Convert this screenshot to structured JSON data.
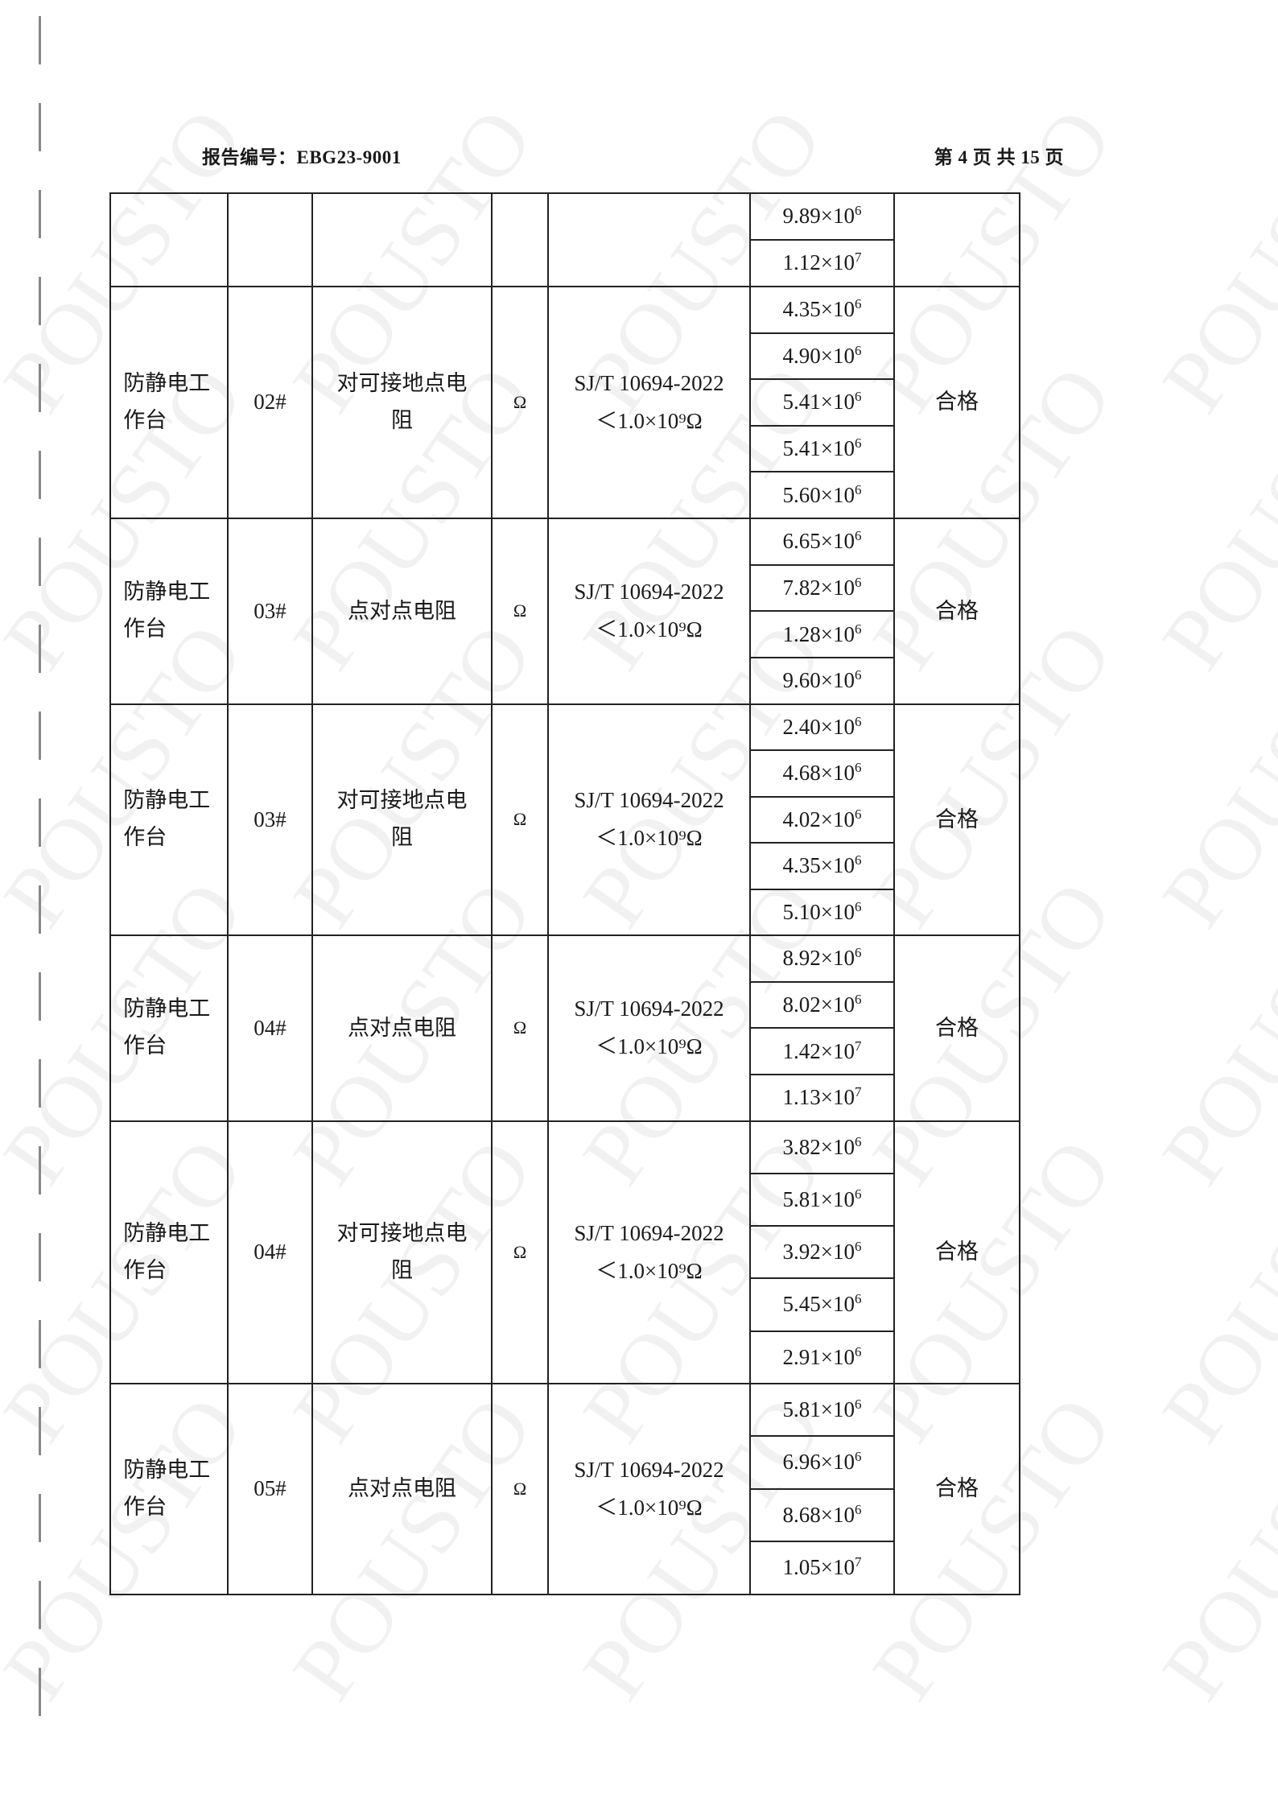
{
  "header": {
    "report_no": "报告编号：EBG23-9001",
    "page": "第 4 页 共 15 页"
  },
  "watermark": "POUSTO",
  "table": {
    "groups": [
      {
        "item": "",
        "no": "",
        "test": "",
        "unit": "",
        "standard": "",
        "limit": "",
        "values": [
          [
            "9.89",
            "6"
          ],
          [
            "1.12",
            "7"
          ]
        ],
        "result": ""
      },
      {
        "item": "防静电工作台",
        "no": "02#",
        "test": "对可接地点电阻",
        "unit": "Ω",
        "standard": "SJ/T 10694-2022",
        "limit": "＜1.0×10⁹Ω",
        "values": [
          [
            "4.35",
            "6"
          ],
          [
            "4.90",
            "6"
          ],
          [
            "5.41",
            "6"
          ],
          [
            "5.41",
            "6"
          ],
          [
            "5.60",
            "6"
          ]
        ],
        "result": "合格"
      },
      {
        "item": "防静电工作台",
        "no": "03#",
        "test": "点对点电阻",
        "unit": "Ω",
        "standard": "SJ/T 10694-2022",
        "limit": "＜1.0×10⁹Ω",
        "values": [
          [
            "6.65",
            "6"
          ],
          [
            "7.82",
            "6"
          ],
          [
            "1.28",
            "6"
          ],
          [
            "9.60",
            "6"
          ]
        ],
        "result": "合格"
      },
      {
        "item": "防静电工作台",
        "no": "03#",
        "test": "对可接地点电阻",
        "unit": "Ω",
        "standard": "SJ/T 10694-2022",
        "limit": "＜1.0×10⁹Ω",
        "values": [
          [
            "2.40",
            "6"
          ],
          [
            "4.68",
            "6"
          ],
          [
            "4.02",
            "6"
          ],
          [
            "4.35",
            "6"
          ],
          [
            "5.10",
            "6"
          ]
        ],
        "result": "合格"
      },
      {
        "item": "防静电工作台",
        "no": "04#",
        "test": "点对点电阻",
        "unit": "Ω",
        "standard": "SJ/T 10694-2022",
        "limit": "＜1.0×10⁹Ω",
        "values": [
          [
            "8.92",
            "6"
          ],
          [
            "8.02",
            "6"
          ],
          [
            "1.42",
            "7"
          ],
          [
            "1.13",
            "7"
          ]
        ],
        "result": "合格"
      },
      {
        "item": "防静电工作台",
        "no": "04#",
        "test": "对可接地点电阻",
        "unit": "Ω",
        "standard": "SJ/T 10694-2022",
        "limit": "＜1.0×10⁹Ω",
        "values": [
          [
            "3.82",
            "6"
          ],
          [
            "5.81",
            "6"
          ],
          [
            "3.92",
            "6"
          ],
          [
            "5.45",
            "6"
          ],
          [
            "2.91",
            "6"
          ]
        ],
        "result": "合格"
      },
      {
        "item": "防静电工作台",
        "no": "05#",
        "test": "点对点电阻",
        "unit": "Ω",
        "standard": "SJ/T 10694-2022",
        "limit": "＜1.0×10⁹Ω",
        "values": [
          [
            "5.81",
            "6"
          ],
          [
            "6.96",
            "6"
          ],
          [
            "8.68",
            "6"
          ],
          [
            "1.05",
            "7"
          ]
        ],
        "result": "合格"
      }
    ]
  }
}
